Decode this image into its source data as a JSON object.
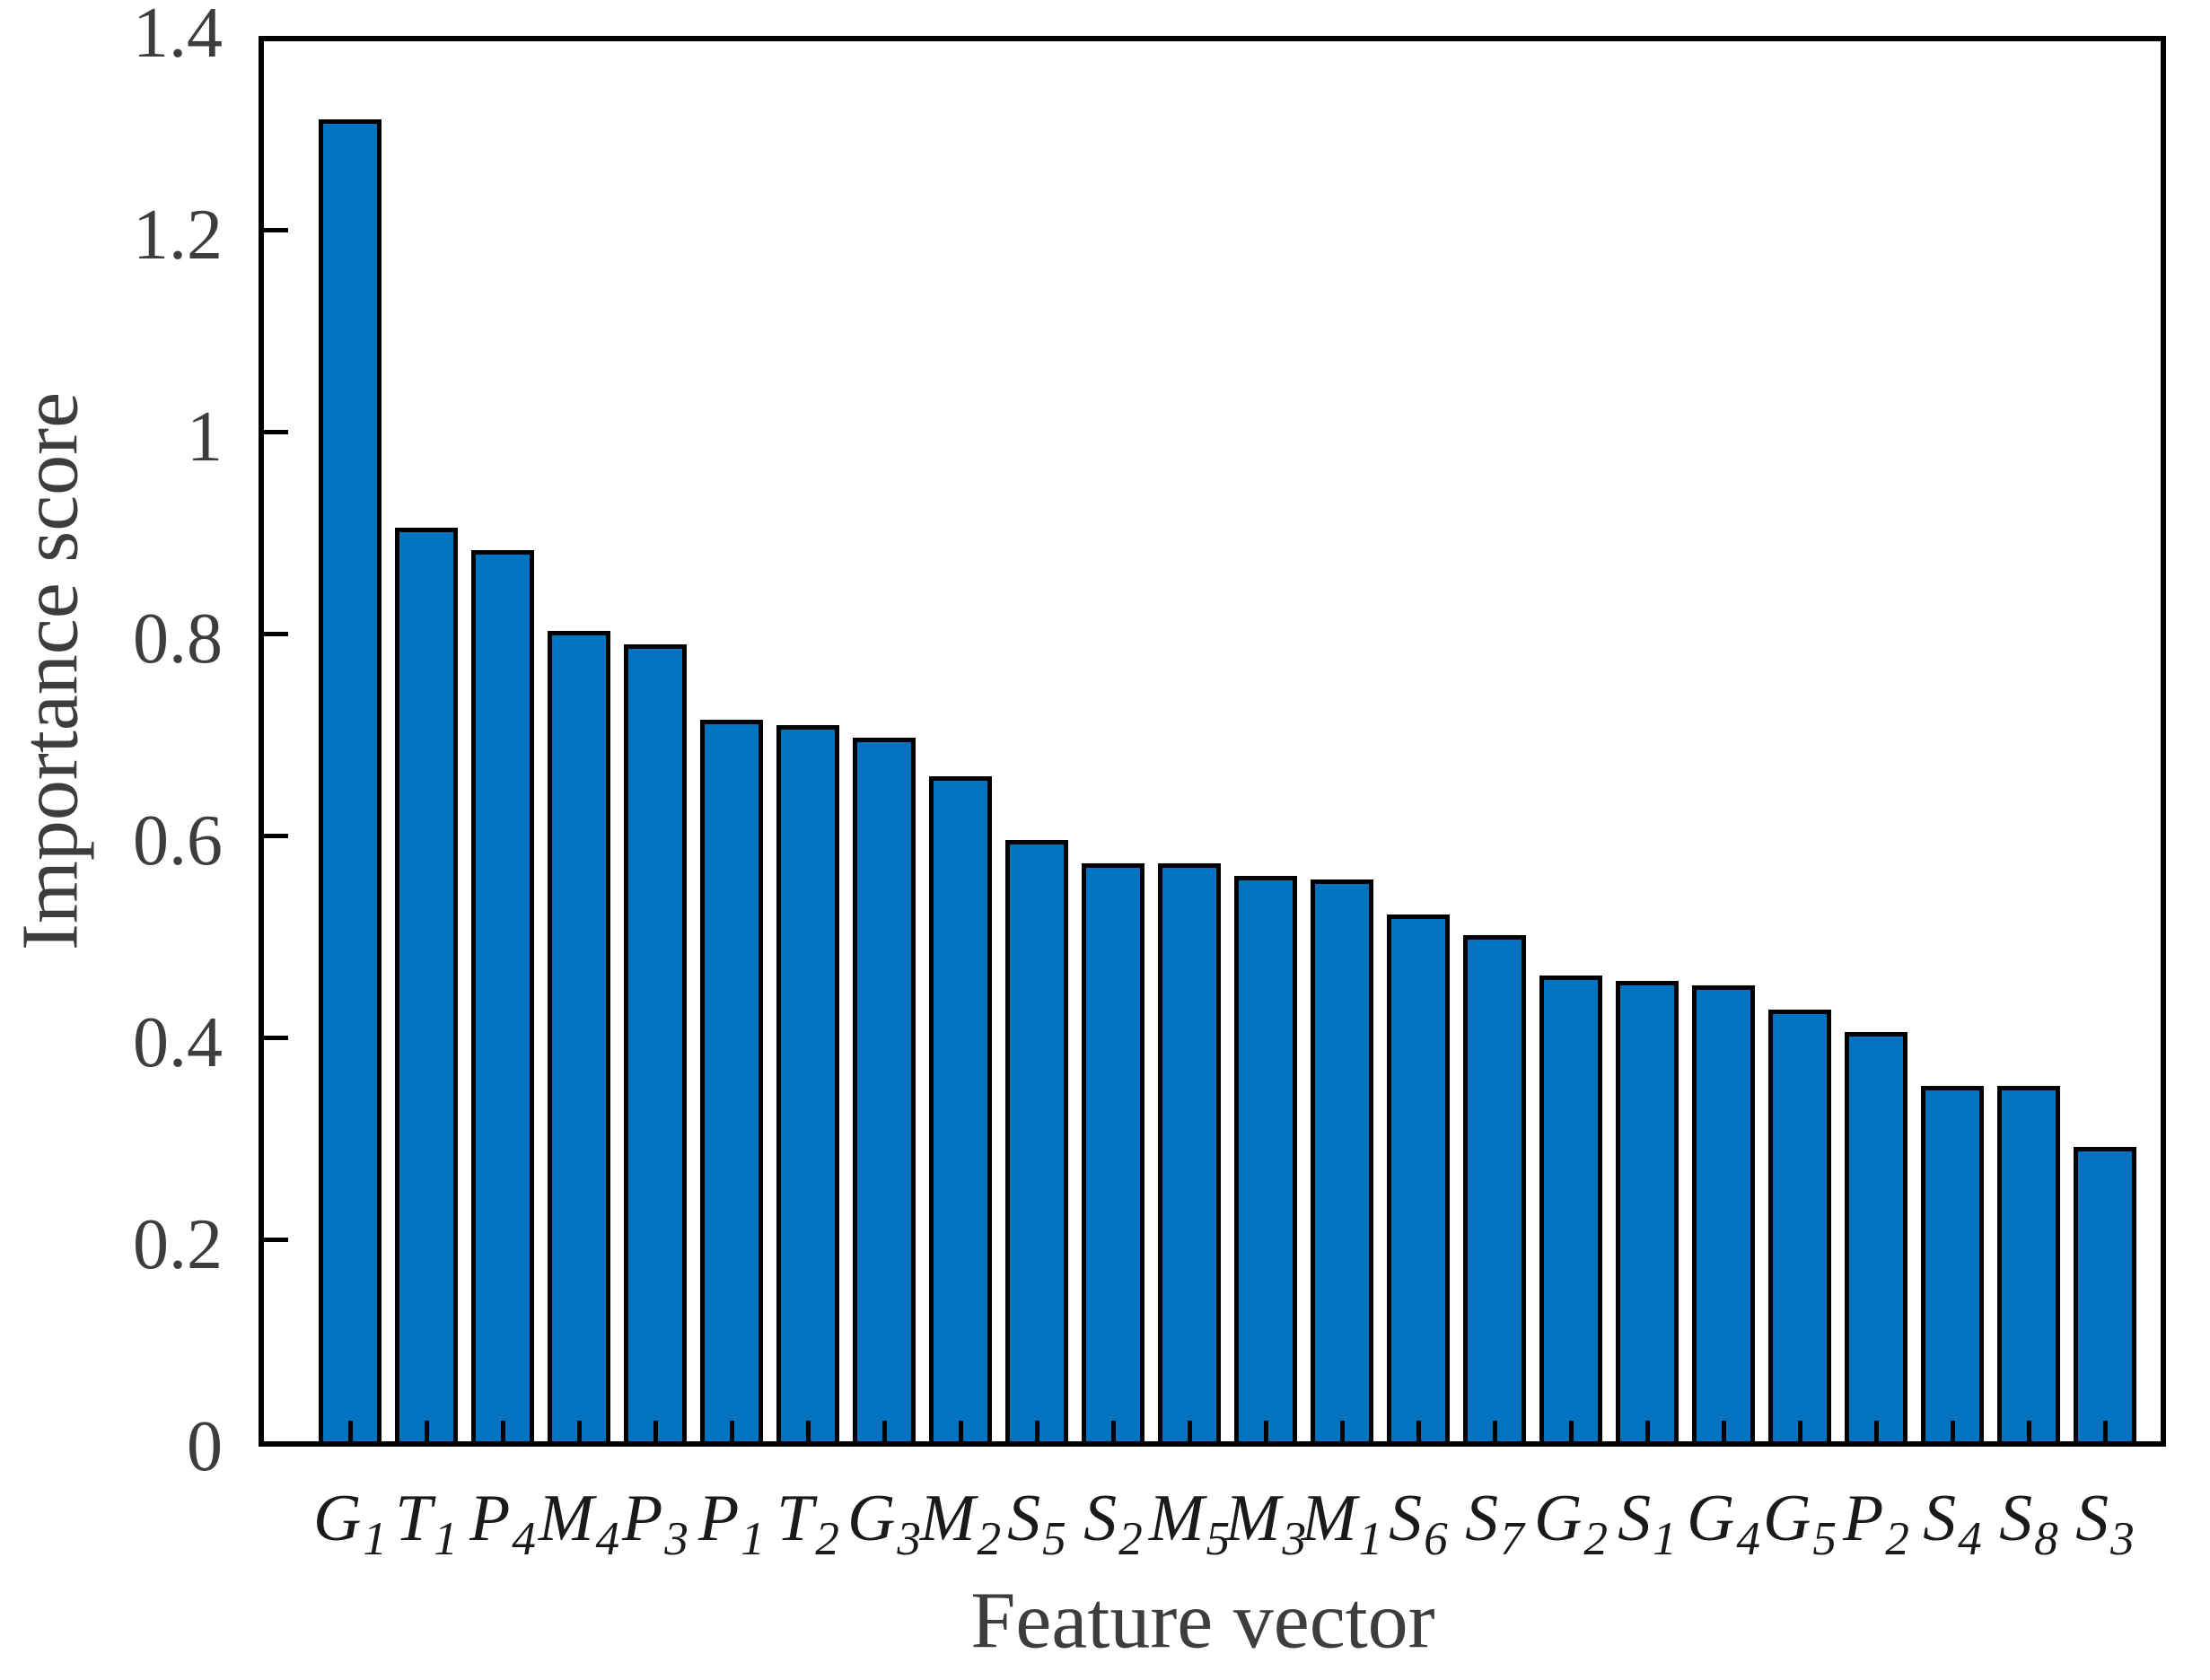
{
  "chart_data": {
    "type": "bar",
    "title": "",
    "xlabel": "Feature vector",
    "ylabel": "Importance score",
    "categories": [
      "G1",
      "T1",
      "P4",
      "M4",
      "P3",
      "P1",
      "T2",
      "G3",
      "M2",
      "S5",
      "S2",
      "M5",
      "M3",
      "M1",
      "S6",
      "S7",
      "G2",
      "S1",
      "G4",
      "G5",
      "P2",
      "S4",
      "S8",
      "S3"
    ],
    "categories_rich": [
      {
        "base": "G",
        "sub": "1"
      },
      {
        "base": "T",
        "sub": "1"
      },
      {
        "base": "P",
        "sub": "4"
      },
      {
        "base": "M",
        "sub": "4"
      },
      {
        "base": "P",
        "sub": "3"
      },
      {
        "base": "P",
        "sub": "1"
      },
      {
        "base": "T",
        "sub": "2"
      },
      {
        "base": "G",
        "sub": "3"
      },
      {
        "base": "M",
        "sub": "2"
      },
      {
        "base": "S",
        "sub": "5"
      },
      {
        "base": "S",
        "sub": "2"
      },
      {
        "base": "M",
        "sub": "5"
      },
      {
        "base": "M",
        "sub": "3"
      },
      {
        "base": "M",
        "sub": "1"
      },
      {
        "base": "S",
        "sub": "6"
      },
      {
        "base": "S",
        "sub": "7"
      },
      {
        "base": "G",
        "sub": "2"
      },
      {
        "base": "S",
        "sub": "1"
      },
      {
        "base": "G",
        "sub": "4"
      },
      {
        "base": "G",
        "sub": "5"
      },
      {
        "base": "P",
        "sub": "2"
      },
      {
        "base": "S",
        "sub": "4"
      },
      {
        "base": "S",
        "sub": "8"
      },
      {
        "base": "S",
        "sub": "3"
      }
    ],
    "values": [
      1.315,
      0.91,
      0.888,
      0.808,
      0.795,
      0.72,
      0.715,
      0.702,
      0.664,
      0.601,
      0.578,
      0.578,
      0.565,
      0.562,
      0.527,
      0.507,
      0.467,
      0.461,
      0.457,
      0.433,
      0.411,
      0.357,
      0.357,
      0.297
    ],
    "ylim": [
      0,
      1.4
    ],
    "yticks": [
      0,
      0.2,
      0.4,
      0.6,
      0.8,
      1,
      1.2,
      1.4
    ],
    "ytick_labels": [
      "0",
      "0.2",
      "0.4",
      "0.6",
      "0.8",
      "1",
      "1.2",
      "1.4"
    ],
    "grid": false,
    "legend_position": "none",
    "bar_color": "#0273C1",
    "bar_edge_color": "#000000",
    "axis_color": "#000000",
    "text_color": "#3d3d3d"
  }
}
